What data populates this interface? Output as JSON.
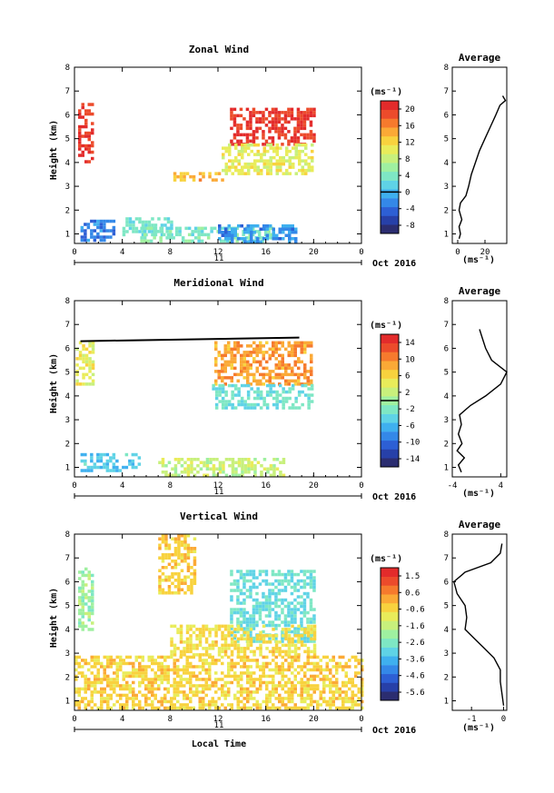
{
  "chart_data": [
    {
      "type": "heatmap",
      "title": "Zonal Wind",
      "xlabel": "",
      "ylabel": "Height (km)",
      "x_ticks": [
        "0",
        "4",
        "8",
        "12",
        "16",
        "20",
        "0"
      ],
      "y_ticks": [
        "1",
        "2",
        "3",
        "4",
        "5",
        "6",
        "7",
        "8"
      ],
      "xlim": [
        0,
        24
      ],
      "ylim": [
        0.6,
        8.0
      ],
      "date_day": "11",
      "date_label": "Oct 2016",
      "colorbar": {
        "unit": "(ms⁻¹)",
        "ticks": [
          "20",
          "16",
          "12",
          "8",
          "4",
          "0",
          "-4",
          "-8"
        ],
        "range": [
          -10,
          22
        ],
        "zero_marker": 0
      },
      "regions": [
        {
          "x": [
            0.3,
            1.6
          ],
          "y": [
            4.0,
            6.5
          ],
          "value": 20
        },
        {
          "x": [
            13.0,
            20.0
          ],
          "y": [
            4.8,
            6.3
          ],
          "value": 20
        },
        {
          "x": [
            12.3,
            20.0
          ],
          "y": [
            3.5,
            4.8
          ],
          "value": 10
        },
        {
          "x": [
            8.0,
            12.5
          ],
          "y": [
            3.2,
            3.6
          ],
          "value": 14
        },
        {
          "x": [
            0.5,
            3.2
          ],
          "y": [
            0.7,
            1.6
          ],
          "value": -3
        },
        {
          "x": [
            4.0,
            8.0
          ],
          "y": [
            1.0,
            1.7
          ],
          "value": 3
        },
        {
          "x": [
            5.5,
            16.5
          ],
          "y": [
            0.7,
            1.3
          ],
          "value": 4
        },
        {
          "x": [
            12.0,
            18.5
          ],
          "y": [
            0.7,
            1.4
          ],
          "value": -2
        }
      ],
      "average_profile": {
        "title": "Average",
        "xlabel": "(ms⁻¹)",
        "x_ticks": [
          "0",
          "20"
        ],
        "xlim": [
          -4,
          36
        ],
        "height": [
          0.8,
          1.0,
          1.3,
          1.6,
          2.0,
          2.3,
          2.6,
          3.0,
          3.5,
          4.0,
          4.5,
          5.0,
          5.5,
          6.0,
          6.4,
          6.6,
          6.8
        ],
        "wind": [
          1,
          2,
          1,
          3,
          1,
          2,
          6,
          8,
          10,
          13,
          16,
          20,
          24,
          28,
          31,
          35,
          33
        ]
      }
    },
    {
      "type": "heatmap",
      "title": "Meridional Wind",
      "xlabel": "",
      "ylabel": "Height (km)",
      "x_ticks": [
        "0",
        "4",
        "8",
        "12",
        "16",
        "20",
        "0"
      ],
      "y_ticks": [
        "1",
        "2",
        "3",
        "4",
        "5",
        "6",
        "7",
        "8"
      ],
      "xlim": [
        0,
        24
      ],
      "ylim": [
        0.6,
        8.0
      ],
      "date_day": "11",
      "date_label": "Oct 2016",
      "colorbar": {
        "unit": "(ms⁻¹)",
        "ticks": [
          "14",
          "10",
          "6",
          "2",
          "-2",
          "-6",
          "-10",
          "-14"
        ],
        "range": [
          -16,
          16
        ],
        "zero_marker": 0
      },
      "regions": [
        {
          "x": [
            0.1,
            1.6
          ],
          "y": [
            4.5,
            6.3
          ],
          "value": 4
        },
        {
          "x": [
            11.7,
            19.8
          ],
          "y": [
            4.5,
            6.3
          ],
          "value": 9
        },
        {
          "x": [
            11.5,
            19.8
          ],
          "y": [
            3.5,
            4.5
          ],
          "value": -3
        },
        {
          "x": [
            0.5,
            5.5
          ],
          "y": [
            0.9,
            1.6
          ],
          "value": -5
        },
        {
          "x": [
            7.0,
            17.5
          ],
          "y": [
            0.7,
            1.4
          ],
          "value": 2
        }
      ],
      "average_profile": {
        "title": "Average",
        "xlabel": "(ms⁻¹)",
        "x_ticks": [
          "-4",
          "4"
        ],
        "xlim": [
          -4,
          5
        ],
        "height": [
          0.8,
          1.1,
          1.4,
          1.7,
          2.0,
          2.4,
          2.8,
          3.2,
          3.6,
          4.0,
          4.5,
          5.0,
          5.5,
          6.0,
          6.4,
          6.8
        ],
        "wind": [
          -2.5,
          -3.0,
          -2.0,
          -3.2,
          -2.4,
          -3.0,
          -2.5,
          -2.8,
          -1.0,
          1.5,
          4.0,
          5.0,
          2.5,
          1.5,
          1.0,
          0.5
        ]
      }
    },
    {
      "type": "heatmap",
      "title": "Vertical Wind",
      "xlabel": "Local Time",
      "ylabel": "Height (km)",
      "x_ticks": [
        "0",
        "4",
        "8",
        "12",
        "16",
        "20",
        "0"
      ],
      "y_ticks": [
        "1",
        "2",
        "3",
        "4",
        "5",
        "6",
        "7",
        "8"
      ],
      "xlim": [
        0,
        24
      ],
      "ylim": [
        0.6,
        8.0
      ],
      "date_day": "11",
      "date_label": "Oct 2016",
      "colorbar": {
        "unit": "(ms⁻¹)",
        "ticks": [
          "1.5",
          "0.6",
          "-0.6",
          "-1.6",
          "-2.6",
          "-3.6",
          "-4.6",
          "-5.6"
        ],
        "range": [
          -6,
          2
        ],
        "zero_marker": null
      },
      "regions": [
        {
          "x": [
            0.3,
            1.6
          ],
          "y": [
            4.0,
            6.6
          ],
          "value": -2.0
        },
        {
          "x": [
            13.0,
            20.0
          ],
          "y": [
            3.5,
            6.5
          ],
          "value": -2.8
        },
        {
          "x": [
            8.0,
            20.0
          ],
          "y": [
            2.9,
            4.2
          ],
          "value": -0.6
        },
        {
          "x": [
            0.0,
            24.0
          ],
          "y": [
            0.7,
            2.9
          ],
          "value": -0.4
        },
        {
          "x": [
            7.0,
            10.0
          ],
          "y": [
            5.5,
            8.0
          ],
          "value": -0.3
        }
      ],
      "average_profile": {
        "title": "Average",
        "xlabel": "(ms⁻¹)",
        "x_ticks": [
          "-1",
          "0"
        ],
        "xlim": [
          -1.6,
          0.1
        ],
        "height": [
          0.8,
          1.3,
          1.8,
          2.3,
          2.8,
          3.2,
          3.6,
          4.0,
          4.5,
          5.0,
          5.5,
          6.0,
          6.4,
          6.8,
          7.2,
          7.6
        ],
        "wind": [
          0.0,
          -0.05,
          -0.1,
          -0.1,
          -0.3,
          -0.6,
          -0.9,
          -1.2,
          -1.15,
          -1.2,
          -1.45,
          -1.55,
          -1.2,
          -0.4,
          -0.1,
          -0.05
        ]
      }
    }
  ]
}
